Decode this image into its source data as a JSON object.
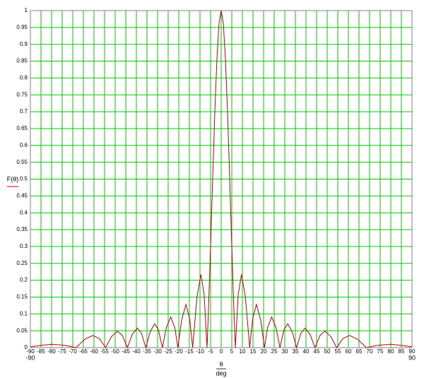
{
  "chart_data": {
    "type": "line",
    "ylabel": "F(θ)",
    "xlabel": "θ",
    "xlabel_unit": "deg",
    "xlim": [
      -90,
      90
    ],
    "ylim": [
      0,
      1
    ],
    "xticks": [
      -90,
      -85,
      -80,
      -75,
      -70,
      -65,
      -60,
      -55,
      -50,
      -45,
      -40,
      -35,
      -30,
      -25,
      -20,
      -15,
      -10,
      -5,
      0,
      5,
      10,
      15,
      20,
      25,
      30,
      35,
      40,
      45,
      50,
      55,
      60,
      65,
      70,
      75,
      80,
      85,
      90
    ],
    "yticks": [
      0,
      0.05,
      0.1,
      0.15,
      0.2,
      0.25,
      0.3,
      0.35,
      0.4,
      0.45,
      0.5,
      0.55,
      0.6,
      0.65,
      0.7,
      0.75,
      0.8,
      0.85,
      0.9,
      0.95,
      1
    ],
    "grid": true,
    "grid_color": "#00c800",
    "series": [
      {
        "name": "F(θ)",
        "color": "#c00000",
        "x": [
          -90,
          -86,
          -80,
          -74,
          -68.47,
          -64.32,
          -60.57,
          -57.46,
          -54.49,
          -51.71,
          -48.9,
          -46.61,
          -44.24,
          -41.96,
          -39.58,
          -37.62,
          -35.55,
          -33.52,
          -31.39,
          -29.62,
          -27.72,
          -25.85,
          -23.8,
          -21.85,
          -20.42,
          -18.65,
          -16.62,
          -14.82,
          -13.45,
          -11.4,
          -9.57,
          -8.02,
          -6.68,
          -6,
          -5,
          -4,
          -3,
          -2,
          -1,
          0,
          1,
          2,
          3,
          4,
          5,
          6,
          6.68,
          8.02,
          9.57,
          11.4,
          13.45,
          14.82,
          16.62,
          18.65,
          20.42,
          21.85,
          23.8,
          25.85,
          27.72,
          29.62,
          31.39,
          33.52,
          35.55,
          37.62,
          39.58,
          41.96,
          44.24,
          46.61,
          48.9,
          51.71,
          54.49,
          57.46,
          60.57,
          64.32,
          68.47,
          74,
          80,
          86,
          90
        ],
        "values": [
          0.002,
          0.006,
          0.01,
          0.007,
          0,
          0.025,
          0.036,
          0.027,
          0,
          0.033,
          0.049,
          0.036,
          0,
          0.039,
          0.058,
          0.043,
          0,
          0.047,
          0.071,
          0.053,
          0,
          0.06,
          0.091,
          0.059,
          0,
          0.082,
          0.128,
          0.085,
          0,
          0.151,
          0.217,
          0.156,
          0,
          0.111,
          0.3,
          0.505,
          0.699,
          0.858,
          0.963,
          1,
          0.963,
          0.858,
          0.699,
          0.505,
          0.3,
          0.111,
          0,
          0.156,
          0.217,
          0.151,
          0,
          0.085,
          0.128,
          0.082,
          0,
          0.059,
          0.091,
          0.06,
          0,
          0.053,
          0.071,
          0.047,
          0,
          0.043,
          0.058,
          0.039,
          0,
          0.036,
          0.049,
          0.033,
          0,
          0.027,
          0.036,
          0.025,
          0,
          0.007,
          0.01,
          0.006,
          0.002
        ]
      }
    ]
  }
}
